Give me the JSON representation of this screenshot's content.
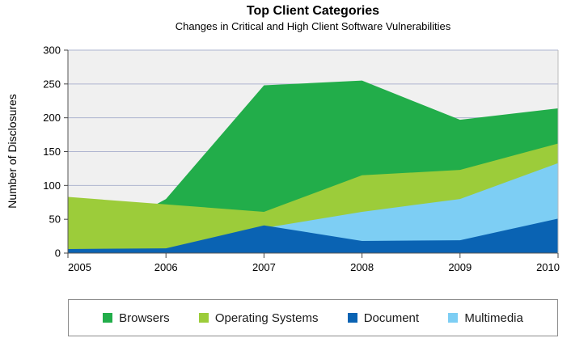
{
  "chart_data": {
    "type": "area",
    "title": "Top Client Categories",
    "subtitle": "Changes in Critical and High Client Software Vulnerabilities",
    "xlabel": "",
    "ylabel": "Number of Disclosures",
    "x": [
      2005,
      2006,
      2007,
      2008,
      2009,
      2010
    ],
    "ylim": [
      0,
      300
    ],
    "yticks": [
      0,
      50,
      100,
      150,
      200,
      250,
      300
    ],
    "grid": true,
    "legend_position": "bottom",
    "series": [
      {
        "name": "Browsers",
        "color": "#22ad4a",
        "values": [
          0,
          80,
          248,
          255,
          197,
          214
        ]
      },
      {
        "name": "Operating Systems",
        "color": "#9ccc3a",
        "values": [
          83,
          72,
          61,
          115,
          123,
          162
        ]
      },
      {
        "name": "Multimedia",
        "color": "#7dcef4",
        "values": [
          0,
          0,
          37,
          61,
          80,
          133
        ]
      },
      {
        "name": "Document",
        "color": "#0a63b3",
        "values": [
          6,
          7,
          41,
          18,
          19,
          51
        ]
      }
    ],
    "legend_order": [
      "Browsers",
      "Operating Systems",
      "Document",
      "Multimedia"
    ],
    "plot_background": "#f0f0f0",
    "grid_color": "#aeb4cf"
  }
}
